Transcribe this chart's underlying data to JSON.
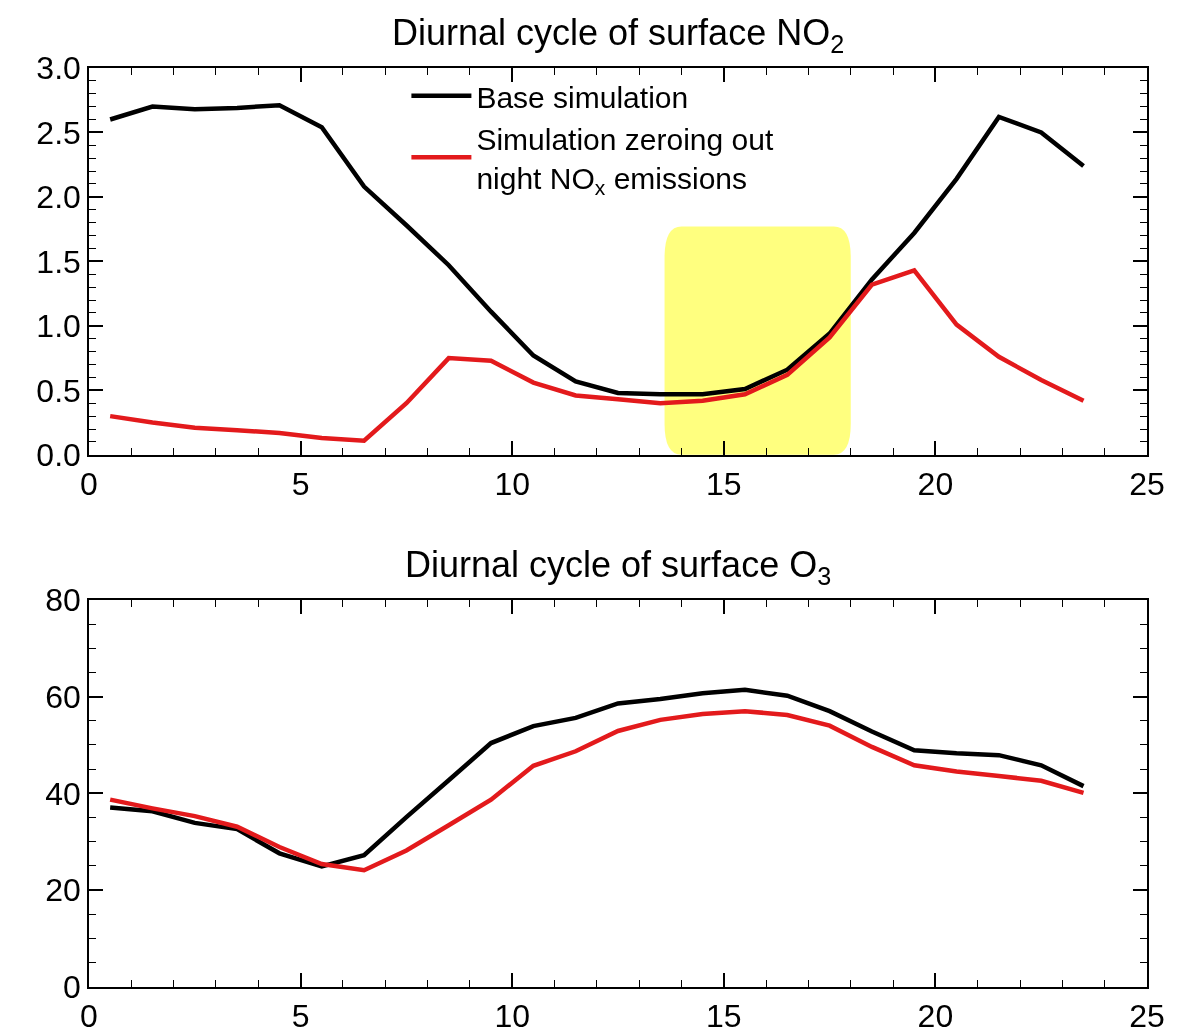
{
  "chart_data": [
    {
      "type": "line",
      "title": "Diurnal cycle of surface NO$_{2}$",
      "x": [
        0.5,
        1.5,
        2.5,
        3.5,
        4.5,
        5.5,
        6.5,
        7.5,
        8.5,
        9.5,
        10.5,
        11.5,
        12.5,
        13.5,
        14.5,
        15.5,
        16.5,
        17.5,
        18.5,
        19.5,
        20.5,
        21.5,
        22.5,
        23.5
      ],
      "series": [
        {
          "name": "Base simulation",
          "color": "#000000",
          "values": [
            2.6,
            2.7,
            2.68,
            2.69,
            2.71,
            2.54,
            2.08,
            1.78,
            1.47,
            1.11,
            0.77,
            0.57,
            0.48,
            0.47,
            0.47,
            0.51,
            0.66,
            0.94,
            1.36,
            1.72,
            2.14,
            2.62,
            2.5,
            2.24
          ]
        },
        {
          "name": "Simulation zeroing out night NO$_{x}$ emissions",
          "color": "#e31a1c",
          "values": [
            0.3,
            0.25,
            0.21,
            0.19,
            0.17,
            0.13,
            0.11,
            0.4,
            0.75,
            0.73,
            0.56,
            0.46,
            0.43,
            0.4,
            0.42,
            0.47,
            0.62,
            0.91,
            1.32,
            1.43,
            1.01,
            0.76,
            0.58,
            0.42
          ]
        }
      ],
      "xlim": [
        0,
        25
      ],
      "xticks": [
        0,
        5,
        10,
        15,
        20,
        25
      ],
      "ylim": [
        0,
        3
      ],
      "yticks": [
        {
          "value": 0,
          "label": "0.0"
        },
        {
          "value": 0.5,
          "label": "0.5"
        },
        {
          "value": 1,
          "label": "1.0"
        },
        {
          "value": 1.5,
          "label": "1.5"
        },
        {
          "value": 2,
          "label": "2.0"
        },
        {
          "value": 2.5,
          "label": "2.5"
        },
        {
          "value": 3,
          "label": "3.0"
        }
      ],
      "bands": [
        {
          "axis": "x",
          "from": 13.6,
          "to": 18.0,
          "color": "#ffff00"
        }
      ],
      "legend": "top",
      "grid": false,
      "marker": "none",
      "line_style": "solid"
    },
    {
      "type": "line",
      "title": "Diurnal cycle of surface O$_{3}$",
      "x": [
        0.5,
        1.5,
        2.5,
        3.5,
        4.5,
        5.5,
        6.5,
        7.5,
        8.5,
        9.5,
        10.5,
        11.5,
        12.5,
        13.5,
        14.5,
        15.5,
        16.5,
        17.5,
        18.5,
        19.5,
        20.5,
        21.5,
        22.5,
        23.5
      ],
      "series": [
        {
          "color": "#000000",
          "values": [
            37.1,
            36.3,
            33.9,
            32.6,
            27.6,
            24.9,
            27.2,
            35.1,
            42.7,
            50.4,
            53.9,
            55.6,
            58.6,
            59.5,
            60.7,
            61.4,
            60.2,
            57.0,
            52.8,
            48.9,
            48.3,
            47.9,
            45.8,
            41.5
          ]
        },
        {
          "color": "#e31a1c",
          "values": [
            38.7,
            36.9,
            35.3,
            33.1,
            28.9,
            25.4,
            24.1,
            28.2,
            33.4,
            38.7,
            45.7,
            48.7,
            52.9,
            55.2,
            56.4,
            57.0,
            56.2,
            54.0,
            49.6,
            45.8,
            44.5,
            43.6,
            42.6,
            40.1
          ]
        }
      ],
      "xlim": [
        0,
        25
      ],
      "xticks": [
        0,
        5,
        10,
        15,
        20,
        25
      ],
      "ylim": [
        0,
        80
      ],
      "yticks": [
        0,
        20,
        40,
        60,
        80
      ],
      "grid": false,
      "marker": "none",
      "line_style": "solid"
    }
  ]
}
